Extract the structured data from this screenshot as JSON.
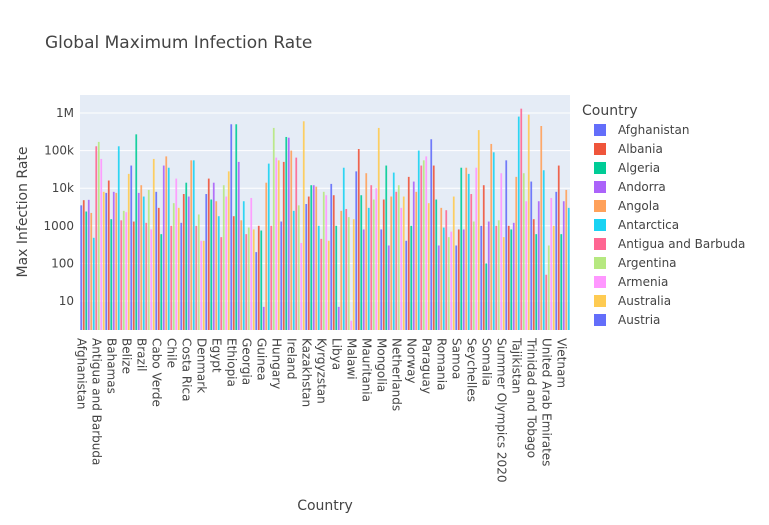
{
  "chart_data": {
    "type": "bar",
    "title": "Global Maximum Infection Rate",
    "x_label": "Country",
    "y_label": "Max Infection Rate",
    "log_y": true,
    "grid": true,
    "palette": [
      "#636efa",
      "#EF553B",
      "#00cc96",
      "#ab63fa",
      "#FFA15A",
      "#19d3f3",
      "#FF6692",
      "#B6E880",
      "#FF97FF",
      "#FECB52"
    ],
    "legend": {
      "title": "Country",
      "position": "right",
      "entries": [
        "Afghanistan",
        "Albania",
        "Algeria",
        "Andorra",
        "Angola",
        "Antarctica",
        "Antigua and Barbuda",
        "Argentina",
        "Armenia",
        "Australia",
        "Austria"
      ]
    },
    "ylim": [
      1.7,
      3000000
    ],
    "yticks": [
      10,
      100,
      1000,
      {
        "value": 10000,
        "label": "10k"
      },
      {
        "value": 100000,
        "label": "100k"
      },
      {
        "value": 1000000,
        "label": "1M"
      }
    ],
    "categories": [
      "Afghanistan",
      null,
      null,
      null,
      null,
      null,
      "Antigua and Barbuda",
      null,
      null,
      null,
      null,
      null,
      "Bahamas",
      null,
      null,
      null,
      null,
      null,
      "Belize",
      null,
      null,
      null,
      null,
      null,
      "Brazil",
      null,
      null,
      null,
      null,
      null,
      "Cabo Verde",
      null,
      null,
      null,
      null,
      null,
      "Chile",
      null,
      null,
      null,
      null,
      null,
      "Costa Rica",
      null,
      null,
      null,
      null,
      null,
      "Denmark",
      null,
      null,
      null,
      null,
      null,
      "Egypt",
      null,
      null,
      null,
      null,
      null,
      "Ethiopia",
      null,
      null,
      null,
      null,
      null,
      "Georgia",
      null,
      null,
      null,
      null,
      null,
      "Guinea",
      null,
      null,
      null,
      null,
      null,
      "Hungary",
      null,
      null,
      null,
      null,
      null,
      "Ireland",
      null,
      null,
      null,
      null,
      null,
      "Kazakhstan",
      null,
      null,
      null,
      null,
      null,
      "Kyrgyzstan",
      null,
      null,
      null,
      null,
      null,
      "Libya",
      null,
      null,
      null,
      null,
      null,
      "Malawi",
      null,
      null,
      null,
      null,
      null,
      "Mauritania",
      null,
      null,
      null,
      null,
      null,
      "Mongolia",
      null,
      null,
      null,
      null,
      null,
      "Netherlands",
      null,
      null,
      null,
      null,
      null,
      "Norway",
      null,
      null,
      null,
      null,
      null,
      "Paraguay",
      null,
      null,
      null,
      null,
      null,
      "Romania",
      null,
      null,
      null,
      null,
      null,
      "Samoa",
      null,
      null,
      null,
      null,
      null,
      "Seychelles",
      null,
      null,
      null,
      null,
      null,
      "Somalia",
      null,
      null,
      null,
      null,
      null,
      "Summer Olympics 2020",
      null,
      null,
      null,
      null,
      null,
      "Tajikistan",
      null,
      null,
      null,
      null,
      null,
      "Trinidad and Tobago",
      null,
      null,
      null,
      null,
      null,
      "United Arab Emirates",
      null,
      null,
      null,
      null,
      null,
      "Vietnam",
      null,
      null,
      null
    ],
    "values": [
      3500,
      4800,
      2400,
      4900,
      2200,
      480,
      130000,
      170000,
      60000,
      8000,
      7500,
      16000,
      1500,
      8000,
      7500,
      130000,
      1400,
      2500,
      2300,
      24000,
      40000,
      1300,
      270000,
      7500,
      12000,
      6000,
      1200,
      9000,
      800,
      60000,
      8000,
      3000,
      600,
      40000,
      70000,
      35000,
      1000,
      4000,
      18000,
      3000,
      1200,
      7000,
      14000,
      6000,
      55000,
      55000,
      1000,
      2000,
      400,
      400,
      7000,
      18000,
      5000,
      14000,
      4500,
      1800,
      500,
      12000,
      6000,
      28000,
      500000,
      1800,
      500000,
      50000,
      1400,
      4500,
      600,
      900,
      5500,
      800,
      200,
      1000,
      750,
      7,
      14000,
      45000,
      1000,
      400000,
      65000,
      55000,
      1300,
      50000,
      230000,
      220000,
      100000,
      2500,
      65000,
      3500,
      350,
      600000,
      3800,
      6000,
      12000,
      12000,
      11000,
      1000,
      450,
      8000,
      6500,
      400,
      13000,
      6500,
      1000,
      7,
      2500,
      35000,
      2800,
      1700,
      3,
      1500,
      28000,
      110000,
      6500,
      800,
      25000,
      3000,
      12000,
      5000,
      10000,
      400000,
      800,
      5000,
      40000,
      300,
      6000,
      26000,
      8000,
      12000,
      3000,
      6000,
      400,
      20000,
      1000,
      15000,
      8000,
      100000,
      40000,
      55000,
      70000,
      4000,
      200000,
      40000,
      5000,
      300,
      3000,
      900,
      2600,
      500,
      700,
      6000,
      300,
      800,
      35000,
      800,
      35000,
      24000,
      7000,
      1300,
      35000,
      350000,
      1000,
      12000,
      100,
      1300,
      150000,
      90000,
      1000,
      1400,
      25000,
      500,
      55000,
      1000,
      800,
      1200,
      20000,
      800000,
      1300000,
      25000,
      4500,
      900000,
      15000,
      1500,
      600,
      4500,
      450000,
      30000,
      50,
      300,
      5500,
      1000,
      8000,
      40000,
      600,
      4500,
      9000,
      3000
    ]
  }
}
